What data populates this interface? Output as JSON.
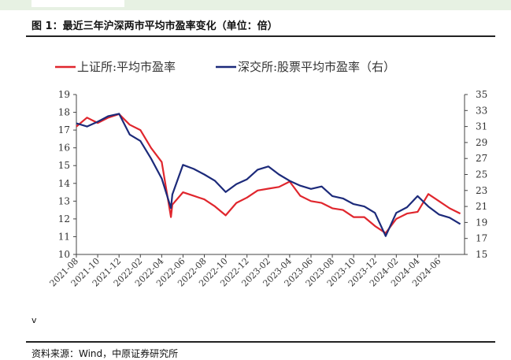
{
  "header": {
    "title": "图 1：最近三年沪深两市平均市盈率变化（单位：倍）"
  },
  "footer": {
    "note": "v",
    "source": "资料来源：Wind，中原证券研究所"
  },
  "colors": {
    "left_series": "#e0262d",
    "right_series": "#1c2a7a",
    "header_band": "#e7f1e3"
  },
  "chart_data": {
    "type": "line",
    "legend_position": "top",
    "grid": false,
    "x_ticks": [
      "2021-08",
      "2021-10",
      "2021-12",
      "2022-02",
      "2022-04",
      "2022-06",
      "2022-08",
      "2022-10",
      "2022-12",
      "2023-02",
      "2023-04",
      "2023-06",
      "2023-08",
      "2023-10",
      "2023-12",
      "2024-02",
      "2024-04",
      "2024-06"
    ],
    "y_left": {
      "min": 10,
      "max": 19,
      "ticks": [
        10,
        11,
        12,
        13,
        14,
        15,
        16,
        17,
        18,
        19
      ]
    },
    "y_right": {
      "min": 15,
      "max": 35,
      "ticks": [
        15,
        17,
        19,
        21,
        23,
        25,
        27,
        29,
        31,
        33,
        35
      ]
    },
    "series": [
      {
        "name": "上证所:平均市盈率",
        "axis": "left",
        "points": [
          [
            "2021-08",
            17.2
          ],
          [
            "2021-09",
            17.7
          ],
          [
            "2021-10",
            17.4
          ],
          [
            "2021-11",
            17.7
          ],
          [
            "2021-12",
            17.9
          ],
          [
            "2022-01",
            17.3
          ],
          [
            "2022-02",
            17.0
          ],
          [
            "2022-03",
            16.0
          ],
          [
            "2022-04",
            15.2
          ],
          [
            "2022-04-27",
            12.1
          ],
          [
            "2022-05",
            12.8
          ],
          [
            "2022-06",
            13.5
          ],
          [
            "2022-07",
            13.3
          ],
          [
            "2022-08",
            13.1
          ],
          [
            "2022-09",
            12.7
          ],
          [
            "2022-10",
            12.2
          ],
          [
            "2022-11",
            12.9
          ],
          [
            "2022-12",
            13.2
          ],
          [
            "2023-01",
            13.6
          ],
          [
            "2023-02",
            13.7
          ],
          [
            "2023-03",
            13.8
          ],
          [
            "2023-04",
            14.1
          ],
          [
            "2023-05",
            13.3
          ],
          [
            "2023-06",
            13.0
          ],
          [
            "2023-07",
            12.9
          ],
          [
            "2023-08",
            12.6
          ],
          [
            "2023-09",
            12.5
          ],
          [
            "2023-10",
            12.1
          ],
          [
            "2023-11",
            12.1
          ],
          [
            "2023-12",
            11.6
          ],
          [
            "2024-01",
            11.2
          ],
          [
            "2024-02",
            12.0
          ],
          [
            "2024-03",
            12.3
          ],
          [
            "2024-04",
            12.4
          ],
          [
            "2024-05",
            13.4
          ],
          [
            "2024-06",
            13.0
          ],
          [
            "2024-07",
            12.6
          ],
          [
            "2024-08",
            12.3
          ]
        ]
      },
      {
        "name": "深交所:股票平均市盈率（右）",
        "axis": "right",
        "points": [
          [
            "2021-08",
            31.4
          ],
          [
            "2021-09",
            31.0
          ],
          [
            "2021-10",
            31.6
          ],
          [
            "2021-11",
            32.3
          ],
          [
            "2021-12",
            32.6
          ],
          [
            "2022-01",
            30.0
          ],
          [
            "2022-02",
            29.2
          ],
          [
            "2022-03",
            27.0
          ],
          [
            "2022-04",
            24.5
          ],
          [
            "2022-04-27",
            20.8
          ],
          [
            "2022-05",
            22.5
          ],
          [
            "2022-06",
            26.2
          ],
          [
            "2022-07",
            25.7
          ],
          [
            "2022-08",
            25.0
          ],
          [
            "2022-09",
            24.2
          ],
          [
            "2022-10",
            22.8
          ],
          [
            "2022-11",
            23.8
          ],
          [
            "2022-12",
            24.4
          ],
          [
            "2023-01",
            25.6
          ],
          [
            "2023-02",
            26.0
          ],
          [
            "2023-03",
            25.0
          ],
          [
            "2023-04",
            24.2
          ],
          [
            "2023-05",
            23.6
          ],
          [
            "2023-06",
            23.2
          ],
          [
            "2023-07",
            23.5
          ],
          [
            "2023-08",
            22.3
          ],
          [
            "2023-09",
            22.0
          ],
          [
            "2023-10",
            21.3
          ],
          [
            "2023-11",
            21.0
          ],
          [
            "2023-12",
            20.2
          ],
          [
            "2024-01",
            17.3
          ],
          [
            "2024-02",
            20.2
          ],
          [
            "2024-03",
            20.9
          ],
          [
            "2024-04",
            22.3
          ],
          [
            "2024-05",
            21.0
          ],
          [
            "2024-06",
            20.0
          ],
          [
            "2024-07",
            19.6
          ],
          [
            "2024-08",
            18.8
          ]
        ]
      }
    ]
  }
}
